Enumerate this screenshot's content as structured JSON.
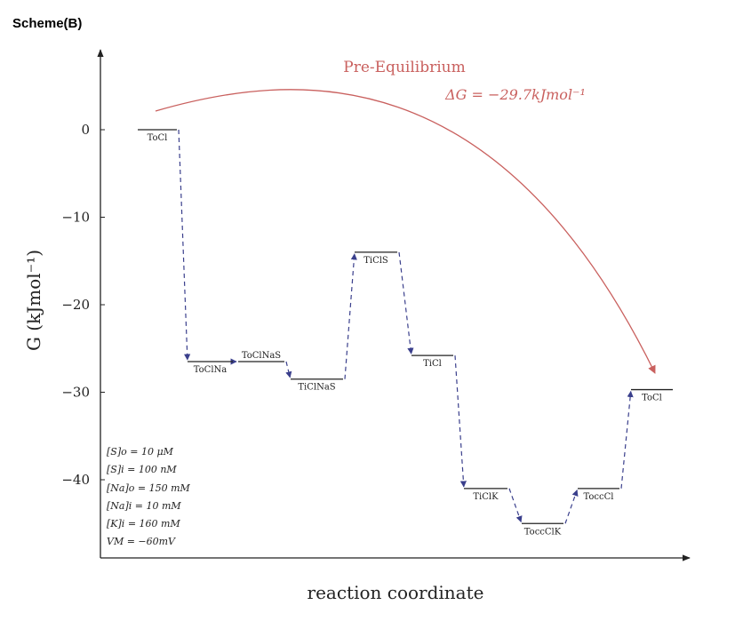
{
  "scheme_label": "Scheme(B)",
  "diagram": {
    "ylabel": "G (kJmol⁻¹)",
    "xlabel": "reaction coordinate",
    "yticks": [
      "0",
      "−10",
      "−20",
      "−30",
      "−40"
    ],
    "y_range": [
      -49,
      9
    ],
    "states": [
      {
        "label": "ToCl",
        "g": 0
      },
      {
        "label": "ToClNa",
        "g": -26.5
      },
      {
        "label": "ToClNaS",
        "g": -26.5
      },
      {
        "label": "TiClNaS",
        "g": -28.5
      },
      {
        "label": "TiClS",
        "g": -14
      },
      {
        "label": "TiCl",
        "g": -25.8
      },
      {
        "label": "TiClK",
        "g": -41
      },
      {
        "label": "ToccClK",
        "g": -45
      },
      {
        "label": "ToccCl",
        "g": -41
      },
      {
        "label": "ToCl",
        "g": -29.7
      }
    ],
    "conditions": [
      "[S]o = 10 μM",
      "[S]i = 100 nM",
      "[Na]o = 150 mM",
      "[Na]i = 10 mM",
      "[K]i = 160 mM",
      "VM = −60mV"
    ],
    "pre_equilibrium": {
      "title": "Pre-Equilibrium",
      "dg": "ΔG = −29.7kJmol⁻¹"
    },
    "colors": {
      "arrow": "#3a3f8c",
      "curve": "#c9605e",
      "axis": "#222222"
    }
  }
}
